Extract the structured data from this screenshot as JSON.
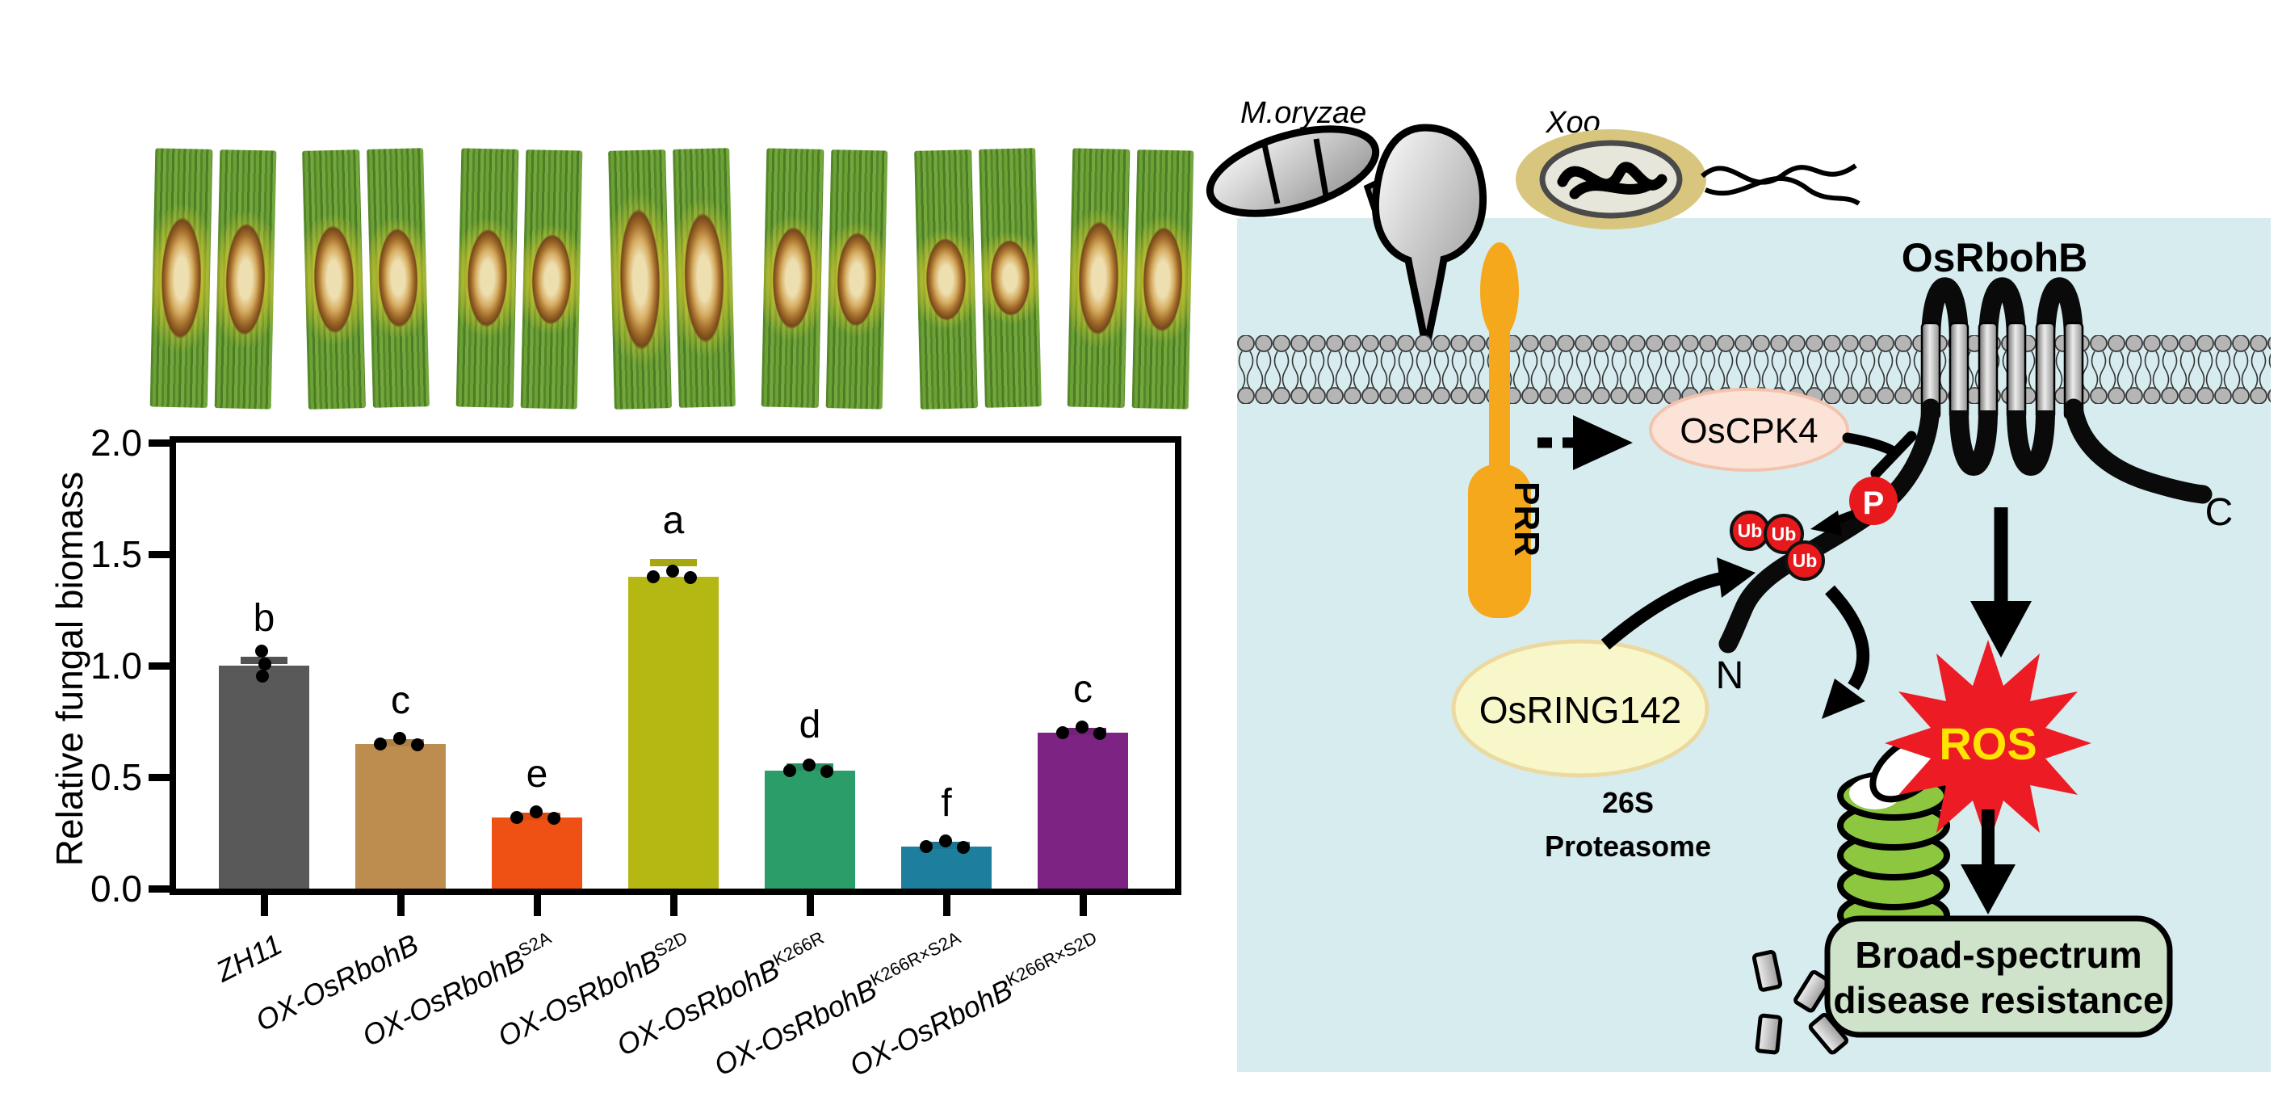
{
  "leaf_panel": {
    "groups": [
      {
        "lesion_pct": 62
      },
      {
        "lesion_pct": 55
      },
      {
        "lesion_pct": 50
      },
      {
        "lesion_pct": 72
      },
      {
        "lesion_pct": 52
      },
      {
        "lesion_pct": 42
      },
      {
        "lesion_pct": 58
      }
    ]
  },
  "chart_data": {
    "type": "bar",
    "title": "",
    "xlabel": "",
    "ylabel": "Relative fungal biomass",
    "ylim": [
      0.0,
      2.0
    ],
    "yticks": [
      "0.0",
      "0.5",
      "1.0",
      "1.5",
      "2.0"
    ],
    "grid": false,
    "legend": "none",
    "categories": [
      {
        "base": "ZH11",
        "sup": ""
      },
      {
        "base": "OX-OsRbohB",
        "sup": ""
      },
      {
        "base": "OX-OsRbohB",
        "sup": "S2A"
      },
      {
        "base": "OX-OsRbohB",
        "sup": "S2D"
      },
      {
        "base": "OX-OsRbohB",
        "sup": "K266R"
      },
      {
        "base": "OX-OsRbohB",
        "sup": "K266R×S2A"
      },
      {
        "base": "OX-OsRbohB",
        "sup": "K266R×S2D"
      }
    ],
    "values": [
      1.0,
      0.65,
      0.32,
      1.4,
      0.53,
      0.19,
      0.7
    ],
    "errors": [
      0.04,
      0.02,
      0.02,
      0.08,
      0.03,
      0.02,
      0.02
    ],
    "sig_letters": [
      "b",
      "c",
      "e",
      "a",
      "d",
      "f",
      "c"
    ],
    "bar_colors": [
      "#595959",
      "#bc8d4e",
      "#ee5113",
      "#b5b713",
      "#2a9d68",
      "#1d7e9e",
      "#7d2383"
    ],
    "points_per_bar": 3,
    "dot_color": "#000000"
  },
  "diagram": {
    "pathogen_1": "M.oryzae",
    "pathogen_2": "Xoo",
    "labels": {
      "osrbohb": "OsRbohB",
      "prr": "PRR",
      "oscpk4": "OsCPK4",
      "osring142": "OsRING142",
      "p": "P",
      "ub": "Ub",
      "n": "N",
      "c": "C",
      "proteasome_line1": "26S",
      "proteasome_line2": "Proteasome",
      "ros": "ROS",
      "outcome_line1": "Broad-spectrum",
      "outcome_line2": "disease resistance"
    },
    "colors": {
      "panel_bg": "#d7ecef",
      "prr": "#f5a81c",
      "oscpk4_fill": "#fbe3d8",
      "oscpk4_stroke": "#f3c3ad",
      "osring142_fill": "#f8f7c9",
      "osring142_stroke": "#ecd9a0",
      "phospho_red": "#e8191c",
      "ros_star": "#ed1c24",
      "ros_text": "#ffe400",
      "proteasome_green": "#8dc63f",
      "outcome_fill": "#cfe2ca",
      "membrane_gray": "#b5b5b5",
      "xoo_capsule": "#d9c67e"
    }
  }
}
